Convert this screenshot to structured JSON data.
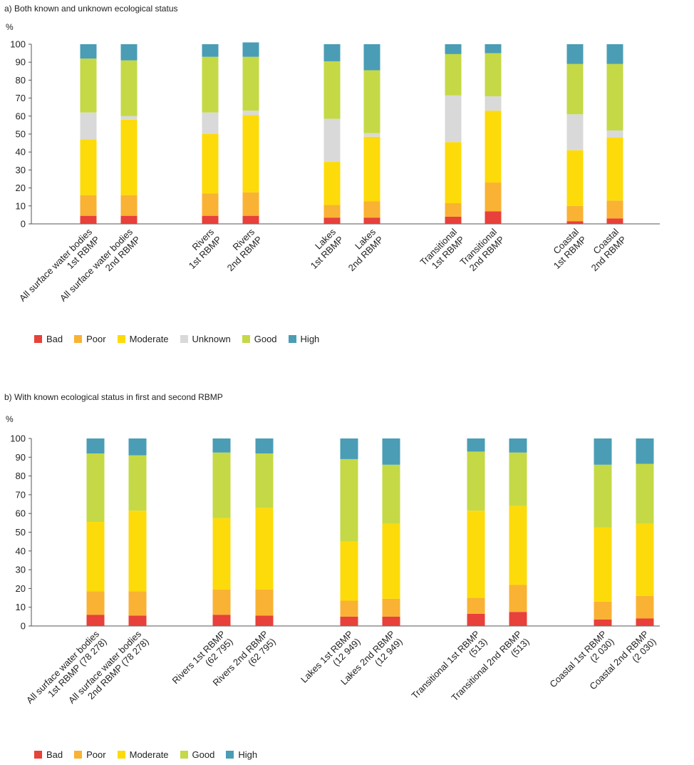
{
  "chart_data": [
    {
      "type": "bar",
      "stacked": true,
      "title": "a) Both known and unknown ecological status",
      "ylabel": "%",
      "ylim": [
        0,
        100
      ],
      "yticks": [
        0,
        10,
        20,
        30,
        40,
        50,
        60,
        70,
        80,
        90,
        100
      ],
      "grid": false,
      "legend_position": "bottom-left",
      "categories": [
        [
          "All surface water bodies",
          "1st RBMP"
        ],
        [
          "All surface water bodies",
          "2nd RBMP"
        ],
        [
          "Rivers",
          "1st RBMP"
        ],
        [
          "Rivers",
          "2nd RBMP"
        ],
        [
          "Lakes",
          "1st RBMP"
        ],
        [
          "Lakes",
          "2nd RBMP"
        ],
        [
          "Transitional",
          "1st RBMP"
        ],
        [
          "Transitional",
          "2nd RBMP"
        ],
        [
          "Coastal",
          "1st RBMP"
        ],
        [
          "Coastal",
          "2nd RBMP"
        ]
      ],
      "series": [
        {
          "name": "Bad",
          "color": "#e8403a",
          "values": [
            4.5,
            4.5,
            4.5,
            4.5,
            3.5,
            3.5,
            4,
            7,
            1.5,
            3
          ]
        },
        {
          "name": "Poor",
          "color": "#f9b233",
          "values": [
            11.5,
            11.5,
            12.5,
            13,
            7,
            9,
            7.5,
            16,
            8.5,
            10
          ]
        },
        {
          "name": "Moderate",
          "color": "#fddb0a",
          "values": [
            31,
            42,
            33,
            43,
            24,
            36,
            34,
            40,
            31,
            35
          ]
        },
        {
          "name": "Unknown",
          "color": "#d9d9d9",
          "values": [
            15,
            2,
            12,
            2.5,
            24,
            2,
            26,
            8,
            20,
            4
          ]
        },
        {
          "name": "Good",
          "color": "#c4d945",
          "values": [
            30,
            31,
            31,
            30,
            32,
            35,
            23,
            24,
            28,
            37
          ]
        },
        {
          "name": "High",
          "color": "#4a9db5",
          "values": [
            8,
            9,
            7,
            8,
            9.5,
            14.5,
            5.5,
            5,
            11,
            11
          ]
        }
      ]
    },
    {
      "type": "bar",
      "stacked": true,
      "title": "b) With known ecological status in first and second RBMP",
      "ylabel": "%",
      "ylim": [
        0,
        100
      ],
      "yticks": [
        0,
        10,
        20,
        30,
        40,
        50,
        60,
        70,
        80,
        90,
        100
      ],
      "grid": false,
      "legend_position": "bottom-left",
      "categories": [
        [
          "All surface water bodies",
          "1st RBMP (78 278)"
        ],
        [
          "All surface water bodies",
          "2nd RBMP (78 278)"
        ],
        [
          "Rivers 1st RBMP",
          "(62 795)"
        ],
        [
          "Rivers 2nd RBMP",
          "(62 795)"
        ],
        [
          "Lakes 1st RBMP",
          "(12 949)"
        ],
        [
          "Lakes 2nd RBMP",
          "(12 949)"
        ],
        [
          "Transitional 1st RBMP",
          "(513)"
        ],
        [
          "Transitional 2nd RBMP",
          "(513)"
        ],
        [
          "Coastal 1st RBMP",
          "(2 030)"
        ],
        [
          "Coastal 2nd RBMP",
          "(2 030)"
        ]
      ],
      "series": [
        {
          "name": "Bad",
          "color": "#e8403a",
          "values": [
            6,
            5.5,
            6,
            5.5,
            5,
            5,
            6.5,
            7.5,
            3.5,
            4
          ]
        },
        {
          "name": "Poor",
          "color": "#f9b233",
          "values": [
            12.5,
            13,
            13.5,
            14,
            8.5,
            9.5,
            8.5,
            14.5,
            9.5,
            12
          ]
        },
        {
          "name": "Moderate",
          "color": "#fddb0a",
          "values": [
            37,
            43,
            38,
            43.5,
            31.5,
            40,
            46.5,
            42,
            39.5,
            38.5
          ]
        },
        {
          "name": "Good",
          "color": "#c4d945",
          "values": [
            36.5,
            29.5,
            35,
            29,
            44,
            31.5,
            31.5,
            28.5,
            33.5,
            32
          ]
        },
        {
          "name": "High",
          "color": "#4a9db5",
          "values": [
            8,
            9,
            7.5,
            8,
            11,
            14,
            7,
            7.5,
            14,
            13.5
          ]
        }
      ]
    }
  ]
}
